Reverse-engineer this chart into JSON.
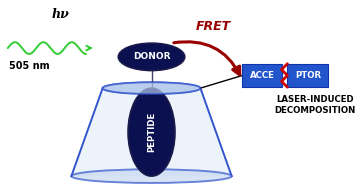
{
  "bg_color": "#ffffff",
  "funnel_color": "#3355cc",
  "funnel_fill": "#aabbee",
  "donor_color": "#0a1050",
  "peptide_color": "#0a1050",
  "acceptor_left_color": "#2255cc",
  "acceptor_right_color": "#2255cc",
  "fret_arrow_color": "#990000",
  "wave_color": "#33cc33",
  "hv_text": "hν",
  "nm_text": "505 nm",
  "donor_text": "DONOR",
  "peptide_text": "PEPTIDE",
  "fret_text": "FRET",
  "acce_text": "ACCE",
  "ptor_text": "PTOR",
  "laser_text": "LASER-INDUCED\nDECOMPOSITION",
  "zigzag_color": "#cc0000"
}
